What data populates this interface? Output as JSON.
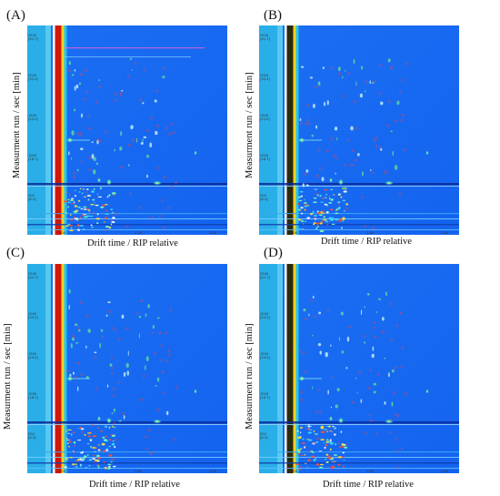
{
  "chart_data": [
    {
      "type": "heatmap",
      "panel_label": "(A)",
      "ylabel": "Measurment run / sec [min]",
      "xlabel": "Drift time / RIP relative",
      "x_ticks": [
        "1.00",
        "1.50",
        "2.00"
      ],
      "x_ticks_sub": [
        "RIP: 8.13 ms"
      ],
      "y_ticks": [
        {
          "value": "500",
          "sub": "[8.3]"
        },
        {
          "value": "1000",
          "sub": "[16.7]"
        },
        {
          "value": "1500",
          "sub": "[25.0]"
        },
        {
          "value": "2000",
          "sub": "[33.3]"
        },
        {
          "value": "2500",
          "sub": "[41.7]"
        }
      ],
      "colors": {
        "background": "#1463f0",
        "rip": "#d01808",
        "strip": "#2aaee8"
      }
    },
    {
      "type": "heatmap",
      "panel_label": "(B)",
      "ylabel": "Measurment run / sec [min]",
      "xlabel": "Drift time / RIP relative",
      "x_ticks": [
        "1.00",
        "1.50",
        "2.00"
      ],
      "x_ticks_sub": [
        "RIP: 8.13 ms"
      ],
      "y_ticks": [
        {
          "value": "500",
          "sub": "[8.3]"
        },
        {
          "value": "1000",
          "sub": "[16.7]"
        },
        {
          "value": "1500",
          "sub": "[25.0]"
        },
        {
          "value": "2000",
          "sub": "[33.3]"
        },
        {
          "value": "2500",
          "sub": "[41.7]"
        }
      ],
      "colors": {
        "background": "#1463f0",
        "rip": "#2a2a10",
        "strip": "#2aaee8"
      }
    },
    {
      "type": "heatmap",
      "panel_label": "(C)",
      "ylabel": "Measurment run / sec [min]",
      "xlabel": "Drift time / RIP relative",
      "x_ticks": [
        "1.00",
        "1.50",
        "2.00"
      ],
      "x_ticks_sub": [
        "RIP: 8.13 ms"
      ],
      "y_ticks": [
        {
          "value": "500",
          "sub": "[8.3]"
        },
        {
          "value": "1000",
          "sub": "[16.7]"
        },
        {
          "value": "1500",
          "sub": "[25.0]"
        },
        {
          "value": "2000",
          "sub": "[33.3]"
        },
        {
          "value": "2500",
          "sub": "[41.7]"
        }
      ],
      "colors": {
        "background": "#1463f0",
        "rip": "#d01808",
        "strip": "#2aaee8"
      }
    },
    {
      "type": "heatmap",
      "panel_label": "(D)",
      "ylabel": "Measurment run / sec [min]",
      "xlabel": "Drift time / RIP relative",
      "x_ticks": [
        "1.00",
        "1.50",
        "2.00"
      ],
      "x_ticks_sub": [
        "RIP: 8.13 ms"
      ],
      "y_ticks": [
        {
          "value": "500",
          "sub": "[8.3]"
        },
        {
          "value": "1000",
          "sub": "[16.7]"
        },
        {
          "value": "1500",
          "sub": "[25.0]"
        },
        {
          "value": "2000",
          "sub": "[33.3]"
        },
        {
          "value": "2500",
          "sub": "[41.7]"
        }
      ],
      "colors": {
        "background": "#1463f0",
        "rip": "#2a2a10",
        "strip": "#2aaee8"
      }
    }
  ]
}
